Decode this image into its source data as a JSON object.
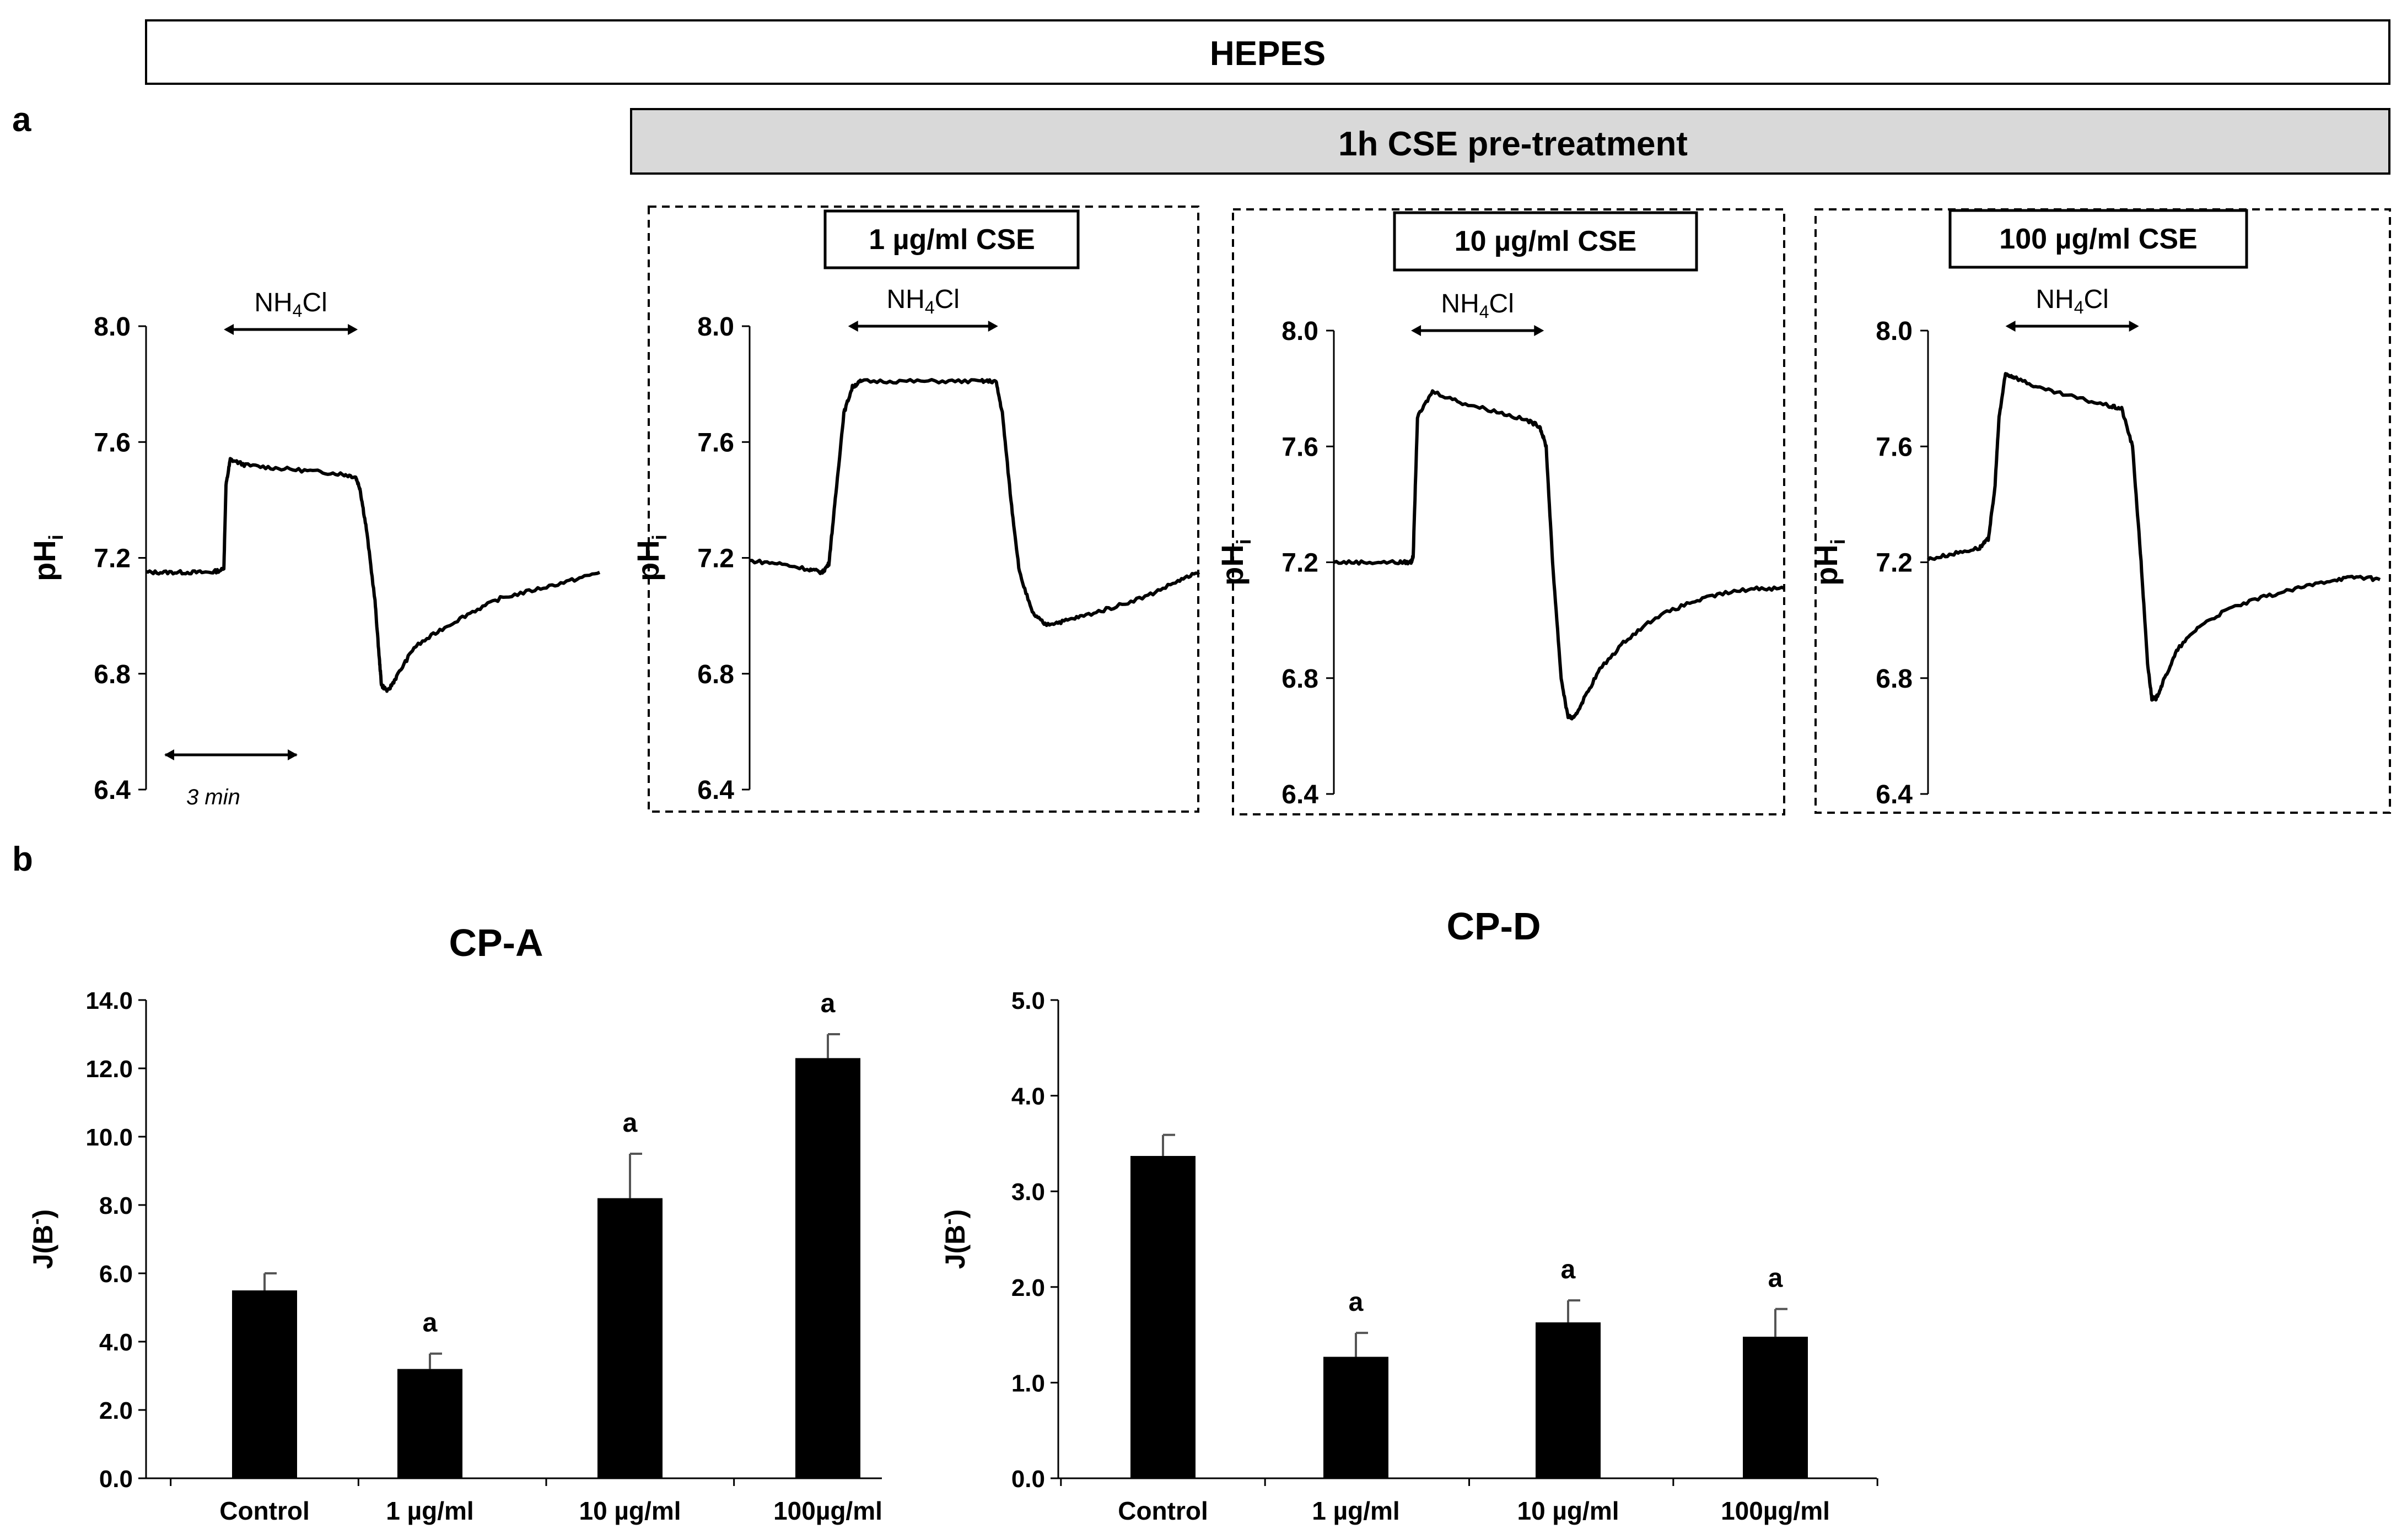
{
  "header": {
    "title": "HEPES",
    "pretreatment": "1h CSE pre-treatment"
  },
  "panel_labels": {
    "a": "a",
    "b": "b"
  },
  "chart_data": [
    {
      "id": "trace-control",
      "type": "line",
      "title": "",
      "ylabel_main": "pH",
      "ylabel_sub": "i",
      "ylim": [
        6.4,
        8.0
      ],
      "yticks": [
        "8.0",
        "7.6",
        "7.2",
        "6.8",
        "6.4"
      ],
      "annotation_main": "NH",
      "annotation_sub": "4",
      "annotation_tail": "Cl",
      "timescale_label": "3 min",
      "x_unit": "min",
      "xlim": [
        0,
        10.5
      ],
      "pulse": [
        1.8,
        4.9
      ],
      "x": [
        0,
        0.5,
        1.0,
        1.5,
        1.8,
        1.85,
        1.95,
        2.3,
        3.0,
        3.8,
        4.5,
        4.85,
        4.95,
        5.1,
        5.3,
        5.4,
        5.45,
        5.6,
        5.8,
        6.2,
        6.8,
        7.5,
        8.2,
        9.0,
        9.8,
        10.5
      ],
      "y": [
        7.15,
        7.15,
        7.15,
        7.15,
        7.16,
        7.45,
        7.54,
        7.52,
        7.51,
        7.5,
        7.49,
        7.48,
        7.44,
        7.3,
        7.05,
        6.85,
        6.76,
        6.74,
        6.79,
        6.89,
        6.95,
        7.01,
        7.06,
        7.09,
        7.12,
        7.15
      ]
    },
    {
      "id": "trace-1",
      "type": "line",
      "label": "1 µg/ml CSE",
      "ylabel_main": "pH",
      "ylabel_sub": "i",
      "ylim": [
        6.4,
        8.0
      ],
      "yticks": [
        "8.0",
        "7.6",
        "7.2",
        "6.8",
        "6.4"
      ],
      "annotation_main": "NH",
      "annotation_sub": "4",
      "annotation_tail": "Cl",
      "x_unit": "min",
      "xlim": [
        0,
        10.5
      ],
      "pulse": [
        2.3,
        5.8
      ],
      "x": [
        0,
        0.7,
        1.4,
        1.7,
        1.85,
        2.0,
        2.2,
        2.4,
        2.6,
        3.5,
        4.5,
        5.4,
        5.75,
        5.9,
        6.1,
        6.3,
        6.6,
        6.9,
        7.3,
        7.8,
        8.5,
        9.3,
        10.0,
        10.5
      ],
      "y": [
        7.19,
        7.18,
        7.16,
        7.15,
        7.18,
        7.4,
        7.7,
        7.79,
        7.81,
        7.81,
        7.81,
        7.81,
        7.81,
        7.7,
        7.4,
        7.15,
        7.01,
        6.97,
        6.98,
        7.0,
        7.03,
        7.07,
        7.12,
        7.15
      ]
    },
    {
      "id": "trace-10",
      "type": "line",
      "label": "10 µg/ml CSE",
      "ylabel_main": "pH",
      "ylabel_sub": "i",
      "ylim": [
        6.4,
        8.0
      ],
      "yticks": [
        "8.0",
        "7.6",
        "7.2",
        "6.8",
        "6.4"
      ],
      "annotation_main": "NH",
      "annotation_sub": "4",
      "annotation_tail": "Cl",
      "x_unit": "min",
      "xlim": [
        0,
        10.5
      ],
      "pulse": [
        1.8,
        4.9
      ],
      "x": [
        0,
        0.7,
        1.5,
        1.8,
        1.85,
        1.95,
        2.3,
        3.0,
        3.8,
        4.5,
        4.8,
        4.95,
        5.1,
        5.3,
        5.45,
        5.6,
        5.8,
        6.2,
        6.8,
        7.5,
        8.3,
        9.0,
        9.8,
        10.5
      ],
      "y": [
        7.2,
        7.2,
        7.2,
        7.2,
        7.22,
        7.7,
        7.79,
        7.75,
        7.72,
        7.69,
        7.67,
        7.6,
        7.2,
        6.8,
        6.67,
        6.66,
        6.72,
        6.83,
        6.93,
        7.01,
        7.06,
        7.09,
        7.11,
        7.11
      ]
    },
    {
      "id": "trace-100",
      "type": "line",
      "label": "100 µg/ml CSE",
      "ylabel_main": "pH",
      "ylabel_sub": "i",
      "ylim": [
        6.4,
        8.0
      ],
      "yticks": [
        "8.0",
        "7.6",
        "7.2",
        "6.8",
        "6.4"
      ],
      "annotation_main": "NH",
      "annotation_sub": "4",
      "annotation_tail": "Cl",
      "x_unit": "min",
      "xlim": [
        0,
        10.5
      ],
      "pulse": [
        1.8,
        4.9
      ],
      "x": [
        0,
        0.6,
        1.2,
        1.4,
        1.55,
        1.65,
        1.8,
        2.0,
        2.6,
        3.4,
        4.2,
        4.5,
        4.75,
        4.95,
        5.1,
        5.2,
        5.3,
        5.5,
        5.8,
        6.3,
        7.0,
        7.8,
        8.6,
        9.4,
        10.0,
        10.5
      ],
      "y": [
        7.21,
        7.23,
        7.25,
        7.28,
        7.45,
        7.7,
        7.85,
        7.84,
        7.8,
        7.77,
        7.74,
        7.73,
        7.6,
        7.2,
        6.85,
        6.73,
        6.73,
        6.8,
        6.9,
        6.98,
        7.04,
        7.08,
        7.11,
        7.14,
        7.15,
        7.14
      ]
    },
    {
      "id": "bar-cpa",
      "type": "bar",
      "title": "CP-A",
      "ylabel_main": "J(B",
      "ylabel_sup": "-",
      "ylabel_tail": ")",
      "ylim": [
        0,
        14
      ],
      "yticks": [
        "0.0",
        "2.0",
        "4.0",
        "6.0",
        "8.0",
        "10.0",
        "12.0",
        "14.0"
      ],
      "categories": [
        "Control",
        "1 µg/ml",
        "10 µg/ml",
        "100µg/ml"
      ],
      "values": [
        5.5,
        3.2,
        8.2,
        12.3
      ],
      "errors": [
        0.5,
        0.45,
        1.3,
        0.7
      ],
      "significance": [
        "",
        "a",
        "a",
        "a"
      ]
    },
    {
      "id": "bar-cpd",
      "type": "bar",
      "title": "CP-D",
      "ylabel_main": "J(B",
      "ylabel_sup": "-",
      "ylabel_tail": ")",
      "ylim": [
        0,
        5
      ],
      "yticks": [
        "0.0",
        "1.0",
        "2.0",
        "3.0",
        "4.0",
        "5.0"
      ],
      "categories": [
        "Control",
        "1 µg/ml",
        "10 µg/ml",
        "100µg/ml"
      ],
      "values": [
        3.37,
        1.27,
        1.63,
        1.48
      ],
      "errors": [
        0.22,
        0.25,
        0.23,
        0.29
      ],
      "significance": [
        "",
        "a",
        "a",
        "a"
      ]
    }
  ]
}
